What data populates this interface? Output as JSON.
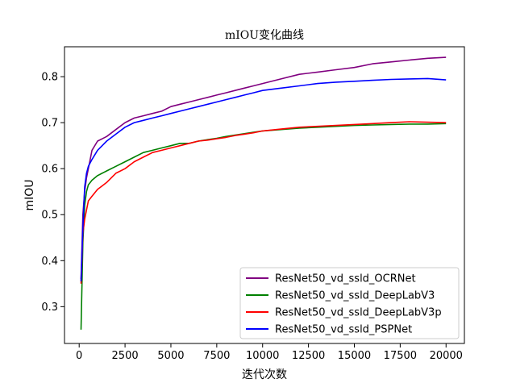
{
  "chart_data": {
    "type": "line",
    "title": "mIOU变化曲线",
    "xlabel": "迭代次数",
    "ylabel": "mIOU",
    "xlim": [
      -800,
      21000
    ],
    "ylim": [
      0.22,
      0.865
    ],
    "xticks": [
      0,
      2500,
      5000,
      7500,
      10000,
      12500,
      15000,
      17500,
      20000
    ],
    "yticks": [
      0.3,
      0.4,
      0.5,
      0.6,
      0.7,
      0.8
    ],
    "grid": false,
    "legend_position": "lower-right",
    "x": [
      100,
      200,
      300,
      400,
      500,
      700,
      1000,
      1500,
      2000,
      2500,
      3000,
      3500,
      4000,
      4500,
      5000,
      5500,
      6000,
      6500,
      7000,
      7500,
      8000,
      8500,
      9000,
      9500,
      10000,
      11000,
      12000,
      13000,
      14000,
      15000,
      16000,
      17000,
      18000,
      19000,
      20000
    ],
    "series": [
      {
        "name": "ResNet50_vd_ssld_OCRNet",
        "color": "#800080",
        "values": [
          0.36,
          0.5,
          0.55,
          0.58,
          0.6,
          0.64,
          0.66,
          0.67,
          0.685,
          0.7,
          0.71,
          0.715,
          0.72,
          0.725,
          0.735,
          0.74,
          0.745,
          0.75,
          0.755,
          0.76,
          0.765,
          0.77,
          0.775,
          0.78,
          0.785,
          0.795,
          0.805,
          0.81,
          0.815,
          0.82,
          0.828,
          0.832,
          0.836,
          0.84,
          0.842
        ]
      },
      {
        "name": "ResNet50_vd_ssld_DeepLabV3",
        "color": "#008000",
        "values": [
          0.25,
          0.44,
          0.52,
          0.55,
          0.565,
          0.575,
          0.585,
          0.595,
          0.605,
          0.615,
          0.625,
          0.635,
          0.64,
          0.645,
          0.65,
          0.655,
          0.655,
          0.66,
          0.663,
          0.666,
          0.67,
          0.673,
          0.676,
          0.679,
          0.682,
          0.685,
          0.688,
          0.69,
          0.692,
          0.694,
          0.695,
          0.696,
          0.697,
          0.697,
          0.698
        ]
      },
      {
        "name": "ResNet50_vd_ssld_DeepLabV3p",
        "color": "#ff0000",
        "values": [
          0.35,
          0.46,
          0.49,
          0.51,
          0.53,
          0.54,
          0.555,
          0.57,
          0.59,
          0.6,
          0.615,
          0.625,
          0.635,
          0.64,
          0.645,
          0.65,
          0.655,
          0.66,
          0.662,
          0.665,
          0.668,
          0.672,
          0.675,
          0.678,
          0.682,
          0.686,
          0.69,
          0.692,
          0.694,
          0.696,
          0.698,
          0.7,
          0.702,
          0.701,
          0.7
        ]
      },
      {
        "name": "ResNet50_vd_ssld_PSPNet",
        "color": "#0000ff",
        "values": [
          0.355,
          0.47,
          0.56,
          0.59,
          0.605,
          0.62,
          0.64,
          0.66,
          0.675,
          0.69,
          0.7,
          0.705,
          0.71,
          0.715,
          0.72,
          0.725,
          0.73,
          0.735,
          0.74,
          0.745,
          0.75,
          0.755,
          0.76,
          0.765,
          0.77,
          0.775,
          0.78,
          0.785,
          0.788,
          0.79,
          0.792,
          0.794,
          0.795,
          0.796,
          0.793
        ]
      }
    ]
  }
}
